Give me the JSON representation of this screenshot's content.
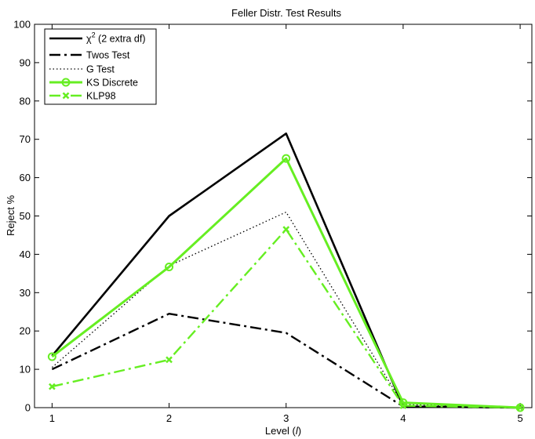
{
  "chart_data": {
    "type": "line",
    "title": "Feller Distr. Test Results",
    "xlabel_prefix": "Level (",
    "xlabel_var": "l",
    "xlabel_suffix": ")",
    "ylabel": "Reject %",
    "x": [
      1,
      2,
      3,
      4,
      5
    ],
    "xlim": [
      0.85,
      5.1
    ],
    "ylim": [
      0,
      100
    ],
    "xticks": [
      "1",
      "2",
      "3",
      "4",
      "5"
    ],
    "yticks": [
      "0",
      "10",
      "20",
      "30",
      "40",
      "50",
      "60",
      "70",
      "80",
      "90",
      "100"
    ],
    "grid": false,
    "legend_position": "top-left",
    "series": [
      {
        "name": "χ",
        "name_sup": "2",
        "name_rest": " (2 extra df)",
        "color": "#000000",
        "line": "solid",
        "width": 2.6,
        "marker": "none",
        "values": [
          13.5,
          50,
          71.5,
          0.3,
          0
        ]
      },
      {
        "name": "Twos Test",
        "color": "#000000",
        "line": "dashdot",
        "width": 2.4,
        "marker": "none",
        "values": [
          10,
          24.5,
          19.5,
          0.3,
          0
        ]
      },
      {
        "name": "G Test",
        "color": "#000000",
        "line": "dotted",
        "width": 1.3,
        "marker": "none",
        "values": [
          10.5,
          37,
          51,
          0.8,
          0
        ]
      },
      {
        "name": "KS Discrete",
        "color": "#66ee22",
        "line": "solid",
        "width": 3,
        "marker": "circle",
        "values": [
          13.3,
          36.7,
          65,
          1.3,
          0
        ]
      },
      {
        "name": "KLP98",
        "color": "#66ee22",
        "line": "dashdot",
        "width": 2.4,
        "marker": "x",
        "values": [
          5.5,
          12.5,
          46.5,
          0.5,
          0
        ]
      }
    ]
  }
}
